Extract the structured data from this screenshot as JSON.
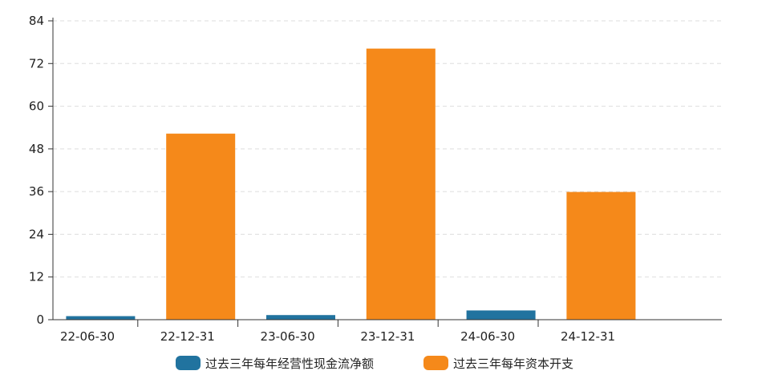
{
  "chart_data": {
    "type": "bar",
    "categories": [
      "22-06-30",
      "22-12-31",
      "23-06-30",
      "23-12-31",
      "24-06-30",
      "24-12-31"
    ],
    "series": [
      {
        "name": "过去三年每年经营性现金流净额",
        "color": "#21739f",
        "values": [
          1,
          null,
          1.3,
          null,
          2.6,
          null
        ]
      },
      {
        "name": "过去三年每年资本开支",
        "color": "#f5891a",
        "values": [
          null,
          52.3,
          null,
          76.2,
          null,
          35.9
        ]
      }
    ],
    "ylim": [
      0,
      84
    ],
    "yticks": [
      0,
      12,
      24,
      36,
      48,
      60,
      72,
      84
    ],
    "grid": true,
    "legend_position": "bottom"
  }
}
